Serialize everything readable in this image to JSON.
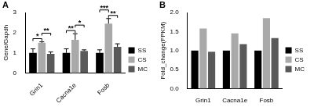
{
  "chart_data": [
    {
      "type": "bar",
      "title": "A",
      "y_label": "Gene/Gapdh",
      "categories": [
        "Grin1",
        "Cacna1e",
        "Fosb"
      ],
      "series": [
        {
          "name": "SS",
          "color": "#000000",
          "values": [
            1.0,
            1.0,
            1.0
          ],
          "errors": [
            0.2,
            0.2,
            0.15
          ]
        },
        {
          "name": "CS",
          "color": "#a9a9a9",
          "values": [
            1.5,
            1.65,
            2.45
          ],
          "errors": [
            0.05,
            0.3,
            0.25
          ]
        },
        {
          "name": "MC",
          "color": "#595959",
          "values": [
            0.95,
            1.1,
            1.3
          ],
          "errors": [
            0.1,
            0.05,
            0.15
          ]
        }
      ],
      "annotations": [
        {
          "text": "*",
          "category": "Grin1",
          "from": "SS",
          "to": "CS"
        },
        {
          "text": "**",
          "category": "Grin1",
          "from": "CS",
          "to": "MC"
        },
        {
          "text": "**",
          "category": "Cacna1e",
          "from": "SS",
          "to": "CS"
        },
        {
          "text": "*",
          "category": "Cacna1e",
          "from": "CS",
          "to": "MC"
        },
        {
          "text": "**",
          "category": "Fosb",
          "from": "CS",
          "to": "MC"
        },
        {
          "text": "***",
          "category": "Fosb",
          "from": "SS",
          "to": "CS"
        }
      ],
      "ylim": [
        0,
        3
      ],
      "yticks": [
        0,
        1,
        2,
        3
      ],
      "grid": false,
      "legend": "right"
    },
    {
      "type": "bar",
      "title": "B",
      "y_label": "Fold_change(FPKM)",
      "categories": [
        "Grin1",
        "Cacna1e",
        "Fosb"
      ],
      "series": [
        {
          "name": "SS",
          "color": "#000000",
          "values": [
            1.0,
            1.0,
            1.0
          ]
        },
        {
          "name": "CS",
          "color": "#a9a9a9",
          "values": [
            1.58,
            1.45,
            1.85
          ]
        },
        {
          "name": "MC",
          "color": "#595959",
          "values": [
            0.97,
            1.17,
            1.33
          ]
        }
      ],
      "ylim": [
        0,
        2
      ],
      "yticks": [
        {
          "value": 0,
          "label": "0.0"
        },
        {
          "value": 0.5,
          "label": "0.5"
        },
        {
          "value": 1,
          "label": "1.0"
        },
        {
          "value": 1.5,
          "label": "1.5"
        },
        {
          "value": 2,
          "label": "2.0"
        }
      ],
      "grid": false,
      "legend": "right"
    }
  ]
}
